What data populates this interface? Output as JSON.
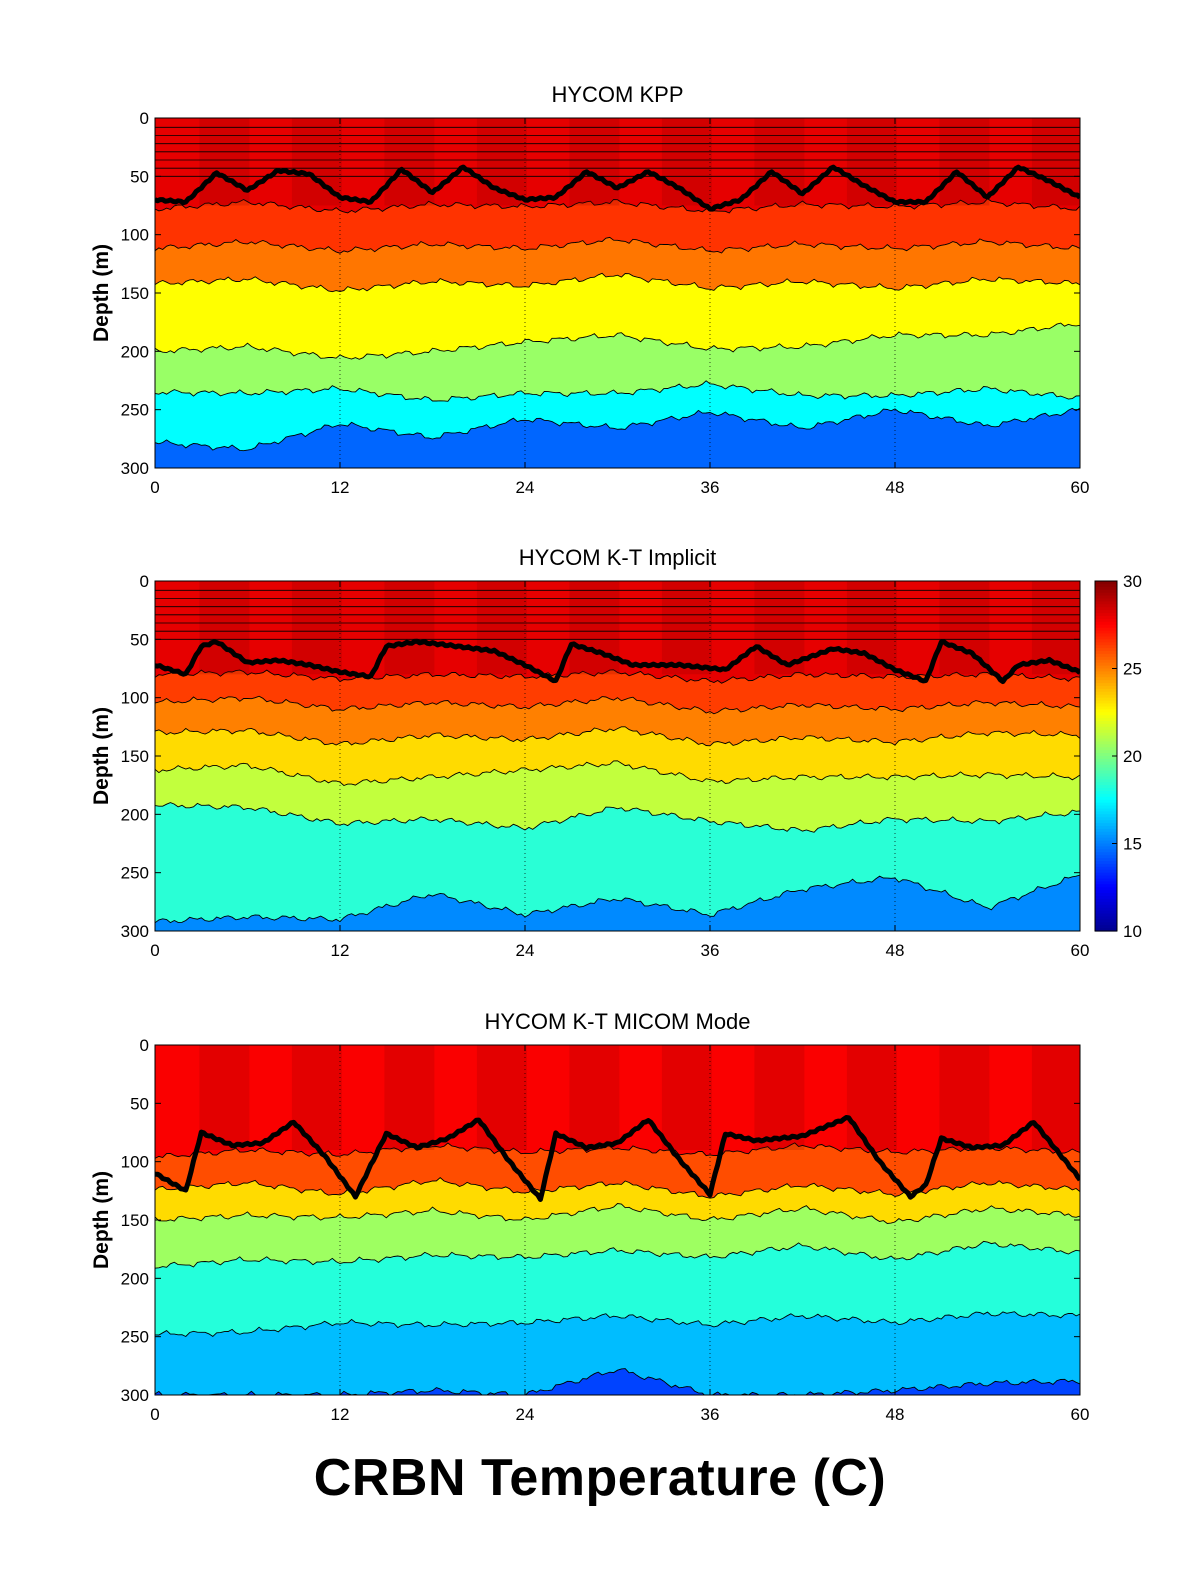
{
  "figure_title": "CRBN Temperature (C)",
  "colormap": {
    "name": "jet",
    "stops": [
      "#00008f",
      "#0000ff",
      "#0080ff",
      "#00ffff",
      "#80ff80",
      "#ffff00",
      "#ff8000",
      "#ff0000",
      "#800000"
    ]
  },
  "colorbar": {
    "min": 10,
    "max": 30,
    "ticks": [
      10,
      15,
      20,
      25,
      30
    ],
    "tick_labels": [
      "10",
      "15",
      "20",
      "25",
      "30"
    ]
  },
  "chart_data": [
    {
      "type": "heatmap",
      "title": "HYCOM KPP",
      "xlabel": "",
      "ylabel": "Depth (m)",
      "xlim": [
        0,
        60
      ],
      "ylim": [
        0,
        300
      ],
      "y_reversed": true,
      "xticks": [
        0,
        12,
        24,
        36,
        48,
        60
      ],
      "yticks": [
        0,
        50,
        100,
        150,
        200,
        250,
        300
      ],
      "grid_x": [
        12,
        24,
        36,
        48
      ],
      "layer_interfaces_depths": [
        8,
        15,
        22,
        29,
        36,
        43,
        50
      ],
      "temperature_bands": [
        {
          "upper_depth": 0,
          "temp": 28
        },
        {
          "upper_depth": 75,
          "temp": 26.5
        },
        {
          "upper_depth": 110,
          "temp": 25.2
        },
        {
          "upper_depth": 140,
          "temp": 22.5
        },
        {
          "upper_depth": 195,
          "temp": 20.5
        },
        {
          "upper_depth": 235,
          "temp": 17.5
        },
        {
          "upper_depth": 270,
          "temp": 14.5
        }
      ],
      "isotherm_depths": {
        "x": [
          0,
          6,
          12,
          18,
          24,
          30,
          36,
          42,
          48,
          54,
          60
        ],
        "depths": [
          [
            78,
            72,
            80,
            74,
            76,
            72,
            80,
            74,
            76,
            72,
            78
          ],
          [
            112,
            106,
            114,
            108,
            112,
            104,
            114,
            108,
            112,
            106,
            112
          ],
          [
            142,
            138,
            148,
            140,
            144,
            134,
            146,
            140,
            146,
            138,
            142
          ],
          [
            200,
            196,
            206,
            200,
            192,
            186,
            198,
            196,
            186,
            186,
            176
          ],
          [
            235,
            236,
            232,
            242,
            236,
            236,
            228,
            238,
            238,
            232,
            240
          ],
          [
            278,
            284,
            262,
            274,
            258,
            266,
            252,
            266,
            250,
            264,
            250
          ]
        ]
      },
      "mixed_layer_depth": {
        "x": [
          0,
          2,
          4,
          6,
          8,
          10,
          12,
          14,
          16,
          18,
          20,
          22,
          24,
          26,
          28,
          30,
          32,
          34,
          36,
          38,
          40,
          42,
          44,
          46,
          48,
          50,
          52,
          54,
          56,
          58,
          60
        ],
        "depth": [
          70,
          72,
          47,
          62,
          45,
          48,
          68,
          72,
          44,
          64,
          42,
          60,
          70,
          68,
          46,
          60,
          46,
          60,
          78,
          70,
          46,
          65,
          42,
          58,
          72,
          72,
          46,
          68,
          42,
          54,
          68
        ]
      }
    },
    {
      "type": "heatmap",
      "title": "HYCOM K-T Implicit",
      "xlabel": "",
      "ylabel": "Depth (m)",
      "xlim": [
        0,
        60
      ],
      "ylim": [
        0,
        300
      ],
      "y_reversed": true,
      "xticks": [
        0,
        12,
        24,
        36,
        48,
        60
      ],
      "yticks": [
        0,
        50,
        100,
        150,
        200,
        250,
        300
      ],
      "grid_x": [
        12,
        24,
        36,
        48
      ],
      "layer_interfaces_depths": [
        8,
        15,
        22,
        29,
        36,
        43,
        50
      ],
      "temperature_bands": [
        {
          "upper_depth": 0,
          "temp": 28
        },
        {
          "upper_depth": 80,
          "temp": 26.3
        },
        {
          "upper_depth": 105,
          "temp": 25
        },
        {
          "upper_depth": 130,
          "temp": 23.2
        },
        {
          "upper_depth": 160,
          "temp": 21.3
        },
        {
          "upper_depth": 195,
          "temp": 18.3
        },
        {
          "upper_depth": 285,
          "temp": 15.2
        }
      ],
      "isotherm_depths": {
        "x": [
          0,
          6,
          12,
          18,
          24,
          30,
          36,
          42,
          48,
          54,
          60
        ],
        "depths": [
          [
            80,
            78,
            84,
            80,
            82,
            78,
            86,
            80,
            82,
            80,
            84
          ],
          [
            104,
            100,
            110,
            104,
            108,
            100,
            112,
            106,
            110,
            104,
            108
          ],
          [
            130,
            128,
            140,
            132,
            136,
            126,
            140,
            134,
            138,
            130,
            132
          ],
          [
            162,
            158,
            174,
            168,
            162,
            156,
            172,
            168,
            168,
            166,
            168
          ],
          [
            192,
            194,
            208,
            204,
            212,
            194,
            206,
            214,
            204,
            206,
            198
          ],
          [
            292,
            288,
            290,
            268,
            286,
            272,
            286,
            264,
            254,
            280,
            252
          ]
        ]
      },
      "mixed_layer_depth": {
        "x": [
          0,
          2,
          3,
          4,
          6,
          8,
          10,
          12,
          14,
          15,
          17,
          19,
          22,
          24,
          26,
          27,
          29,
          31,
          34,
          37,
          39,
          41,
          44,
          46,
          48,
          50,
          51,
          53,
          55,
          56,
          58,
          60
        ],
        "depth": [
          72,
          80,
          56,
          52,
          70,
          68,
          72,
          78,
          82,
          56,
          52,
          55,
          60,
          72,
          86,
          54,
          62,
          72,
          72,
          76,
          56,
          72,
          58,
          62,
          76,
          86,
          52,
          62,
          86,
          72,
          68,
          78
        ]
      }
    },
    {
      "type": "heatmap",
      "title": "HYCOM K-T MICOM Mode",
      "xlabel": "",
      "ylabel": "Depth (m)",
      "xlim": [
        0,
        60
      ],
      "ylim": [
        0,
        300
      ],
      "y_reversed": true,
      "xticks": [
        0,
        12,
        24,
        36,
        48,
        60
      ],
      "yticks": [
        0,
        50,
        100,
        150,
        200,
        250,
        300
      ],
      "grid_x": [
        12,
        24,
        36,
        48
      ],
      "layer_interfaces_depths": [],
      "temperature_bands": [
        {
          "upper_depth": 0,
          "temp": 27.6
        },
        {
          "upper_depth": 90,
          "temp": 26
        },
        {
          "upper_depth": 118,
          "temp": 23.2
        },
        {
          "upper_depth": 145,
          "temp": 20.6
        },
        {
          "upper_depth": 185,
          "temp": 18.2
        },
        {
          "upper_depth": 245,
          "temp": 16.2
        },
        {
          "upper_depth": 292,
          "temp": 13.8
        }
      ],
      "isotherm_depths": {
        "x": [
          0,
          6,
          12,
          18,
          24,
          30,
          36,
          42,
          48,
          54,
          60
        ],
        "depths": [
          [
            96,
            90,
            94,
            86,
            92,
            88,
            94,
            86,
            92,
            88,
            92
          ],
          [
            124,
            118,
            128,
            116,
            126,
            118,
            130,
            120,
            128,
            118,
            124
          ],
          [
            150,
            146,
            148,
            142,
            150,
            138,
            150,
            140,
            152,
            140,
            146
          ],
          [
            190,
            184,
            186,
            180,
            182,
            176,
            182,
            172,
            184,
            170,
            178
          ],
          [
            248,
            246,
            238,
            240,
            238,
            232,
            240,
            232,
            238,
            230,
            232
          ],
          [
            300,
            300,
            300,
            296,
            300,
            278,
            300,
            300,
            296,
            290,
            288
          ]
        ]
      },
      "mixed_layer_depth": {
        "x": [
          0,
          2,
          3,
          5,
          7,
          9,
          11,
          13,
          15,
          17,
          19,
          21,
          23,
          25,
          26,
          28,
          30,
          32,
          34,
          36,
          37,
          39,
          42,
          45,
          47,
          49,
          50,
          51,
          53,
          55,
          57,
          60
        ],
        "depth": [
          110,
          125,
          75,
          86,
          84,
          66,
          95,
          130,
          76,
          88,
          80,
          64,
          100,
          132,
          76,
          88,
          84,
          64,
          98,
          128,
          76,
          82,
          78,
          62,
          100,
          130,
          120,
          80,
          88,
          86,
          66,
          115
        ]
      }
    }
  ]
}
